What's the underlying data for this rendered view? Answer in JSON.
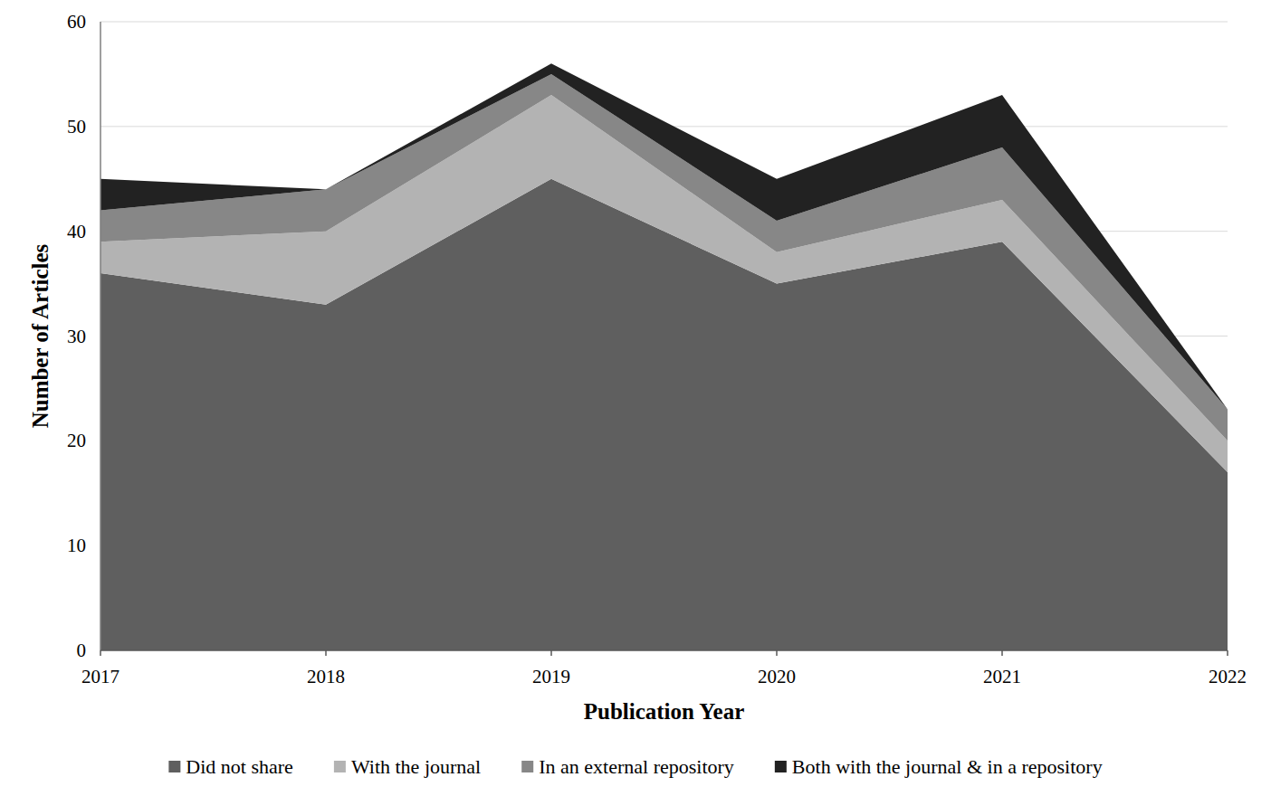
{
  "chart_data": {
    "type": "area",
    "stacked": true,
    "x_label": "Publication Year",
    "y_label": "Number of Articles",
    "x": [
      2017,
      2018,
      2019,
      2020,
      2021,
      2022
    ],
    "xlim": [
      2017,
      2022
    ],
    "xticks": [
      2017,
      2018,
      2019,
      2020,
      2021,
      2022
    ],
    "ylim": [
      0,
      60
    ],
    "yticks": [
      0,
      10,
      20,
      30,
      40,
      50,
      60
    ],
    "grid": true,
    "legend": "bottom",
    "series": [
      {
        "name": "Did not share",
        "color": "#5f5f5f",
        "values": [
          36,
          33,
          45,
          35,
          39,
          17
        ]
      },
      {
        "name": "With the journal",
        "color": "#b3b3b3",
        "values": [
          3,
          7,
          8,
          3,
          4,
          3
        ]
      },
      {
        "name": "In an external repository",
        "color": "#878787",
        "values": [
          3,
          4,
          2,
          3,
          5,
          3
        ]
      },
      {
        "name": "Both with the journal & in a repository",
        "color": "#222222",
        "values": [
          3,
          0,
          1,
          4,
          5,
          0
        ]
      }
    ]
  }
}
